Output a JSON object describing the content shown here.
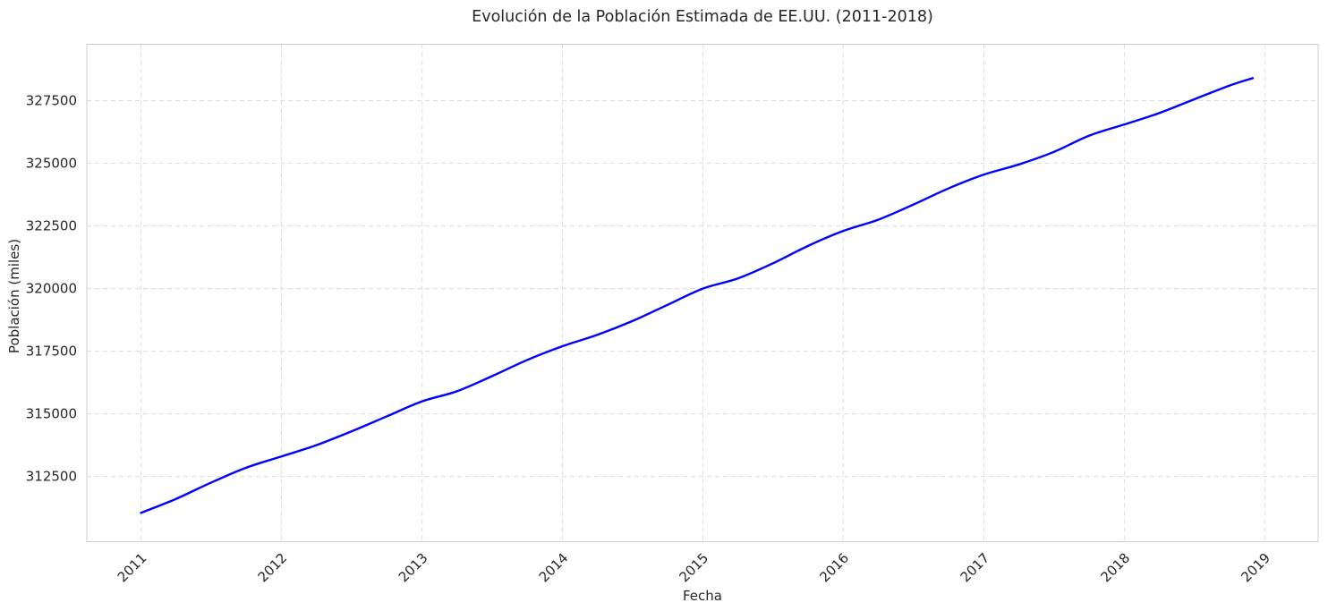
{
  "chart_data": {
    "type": "line",
    "title": "Evolución de la Población Estimada de EE.UU. (2011-2018)",
    "xlabel": "Fecha",
    "ylabel": "Población (miles)",
    "x_ticks": [
      "2011",
      "2012",
      "2013",
      "2014",
      "2015",
      "2016",
      "2017",
      "2018",
      "2019"
    ],
    "y_ticks": [
      "312500",
      "315000",
      "317500",
      "320000",
      "322500",
      "325000",
      "327500"
    ],
    "xlim": [
      "2010-08-13",
      "2019-05-20"
    ],
    "ylim": [
      309900,
      329750
    ],
    "grid": true,
    "grid_style": "dashed",
    "line_color": "#0000ff",
    "series": [
      {
        "values": [
          {
            "x": "2011-01-01",
            "y": 311050
          },
          {
            "x": "2011-04-01",
            "y": 311600
          },
          {
            "x": "2011-07-01",
            "y": 312250
          },
          {
            "x": "2011-10-01",
            "y": 312850
          },
          {
            "x": "2012-01-01",
            "y": 313300
          },
          {
            "x": "2012-04-01",
            "y": 313750
          },
          {
            "x": "2012-07-01",
            "y": 314300
          },
          {
            "x": "2012-10-01",
            "y": 314900
          },
          {
            "x": "2013-01-01",
            "y": 315500
          },
          {
            "x": "2013-04-01",
            "y": 315900
          },
          {
            "x": "2013-07-01",
            "y": 316500
          },
          {
            "x": "2013-10-01",
            "y": 317150
          },
          {
            "x": "2014-01-01",
            "y": 317700
          },
          {
            "x": "2014-04-01",
            "y": 318150
          },
          {
            "x": "2014-07-01",
            "y": 318700
          },
          {
            "x": "2014-10-01",
            "y": 319350
          },
          {
            "x": "2015-01-01",
            "y": 320000
          },
          {
            "x": "2015-04-01",
            "y": 320400
          },
          {
            "x": "2015-07-01",
            "y": 321000
          },
          {
            "x": "2015-10-01",
            "y": 321700
          },
          {
            "x": "2016-01-01",
            "y": 322300
          },
          {
            "x": "2016-04-01",
            "y": 322750
          },
          {
            "x": "2016-07-01",
            "y": 323350
          },
          {
            "x": "2016-10-01",
            "y": 324000
          },
          {
            "x": "2017-01-01",
            "y": 324550
          },
          {
            "x": "2017-04-01",
            "y": 324950
          },
          {
            "x": "2017-07-01",
            "y": 325450
          },
          {
            "x": "2017-10-01",
            "y": 326100
          },
          {
            "x": "2018-01-01",
            "y": 326550
          },
          {
            "x": "2018-04-01",
            "y": 327000
          },
          {
            "x": "2018-07-01",
            "y": 327550
          },
          {
            "x": "2018-10-01",
            "y": 328100
          },
          {
            "x": "2018-12-01",
            "y": 328400
          }
        ]
      }
    ]
  }
}
